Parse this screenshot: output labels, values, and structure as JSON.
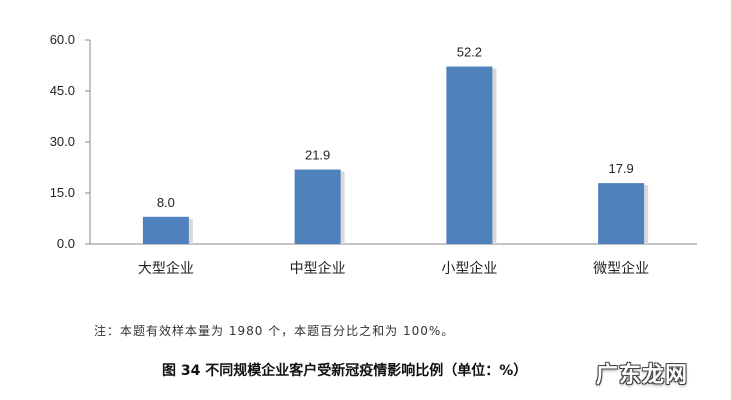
{
  "chart_data": {
    "type": "bar",
    "categories": [
      "大型企业",
      "中型企业",
      "小型企业",
      "微型企业"
    ],
    "values": [
      8.0,
      21.9,
      52.2,
      17.9
    ],
    "value_labels": [
      "8.0",
      "21.9",
      "52.2",
      "17.9"
    ],
    "yticks": [
      "0.0",
      "15.0",
      "30.0",
      "45.0",
      "60.0"
    ],
    "ylim": [
      0,
      60
    ],
    "grid": false,
    "legend": "none",
    "bar_color": "#4f81bd",
    "bar_shadow_color": "#d9d9d9"
  },
  "note": "注：本题有效样本量为 1980 个，本题百分比之和为 100%。",
  "caption": "图 34 不同规模企业客户受新冠疫情影响比例（单位：%）",
  "watermark": "广东龙网"
}
